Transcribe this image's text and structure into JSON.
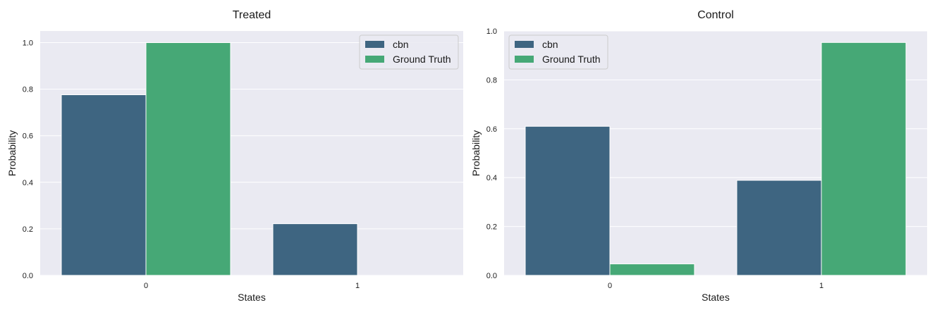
{
  "figure": {
    "colors": {
      "cbn": "#3e6581",
      "ground_truth": "#46a876",
      "panel_bg": "#eaeaf2",
      "grid": "#ffffff"
    }
  },
  "chart_data": [
    {
      "type": "bar",
      "title": "Treated",
      "xlabel": "States",
      "ylabel": "Probability",
      "categories": [
        "0",
        "1"
      ],
      "series": [
        {
          "name": "cbn",
          "values": [
            0.776,
            0.222
          ]
        },
        {
          "name": "Ground Truth",
          "values": [
            1.0,
            0.0
          ]
        }
      ],
      "ylim": [
        0,
        1.05
      ],
      "yticks": [
        "0.0",
        "0.2",
        "0.4",
        "0.6",
        "0.8",
        "1.0"
      ],
      "grid": true,
      "legend": "top-right"
    },
    {
      "type": "bar",
      "title": "Control",
      "xlabel": "States",
      "ylabel": "Probability",
      "categories": [
        "0",
        "1"
      ],
      "series": [
        {
          "name": "cbn",
          "values": [
            0.61,
            0.389
          ]
        },
        {
          "name": "Ground Truth",
          "values": [
            0.047,
            0.953
          ]
        }
      ],
      "ylim": [
        0,
        1.0
      ],
      "yticks": [
        "0.0",
        "0.2",
        "0.4",
        "0.6",
        "0.8",
        "1.0"
      ],
      "grid": true,
      "legend": "top-left"
    }
  ]
}
